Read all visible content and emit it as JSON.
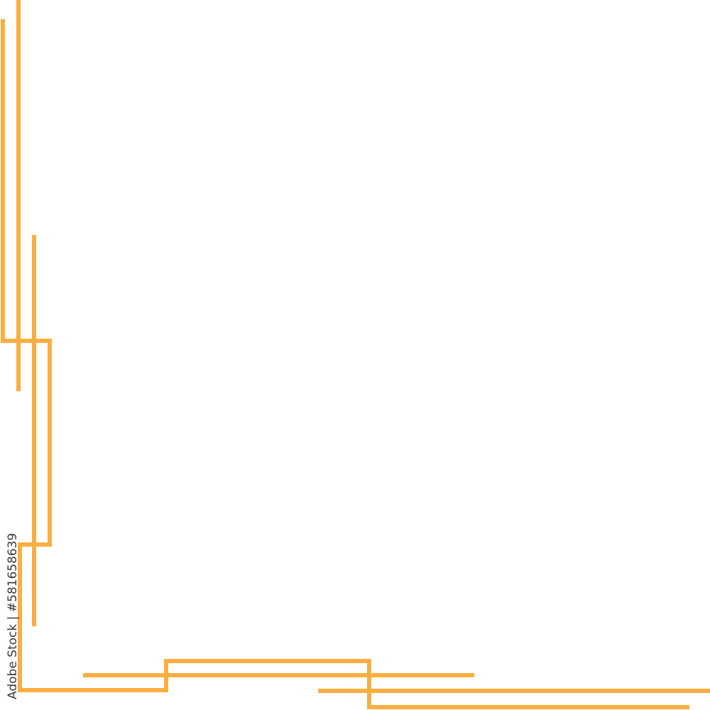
{
  "watermark": {
    "text": "Adobe Stock | #581658639"
  },
  "colors": {
    "line": "#FBAE40",
    "background": "#FFFFFF",
    "watermark": "#3A3A3A"
  },
  "icons": [
    "corner-frame-ornament"
  ]
}
